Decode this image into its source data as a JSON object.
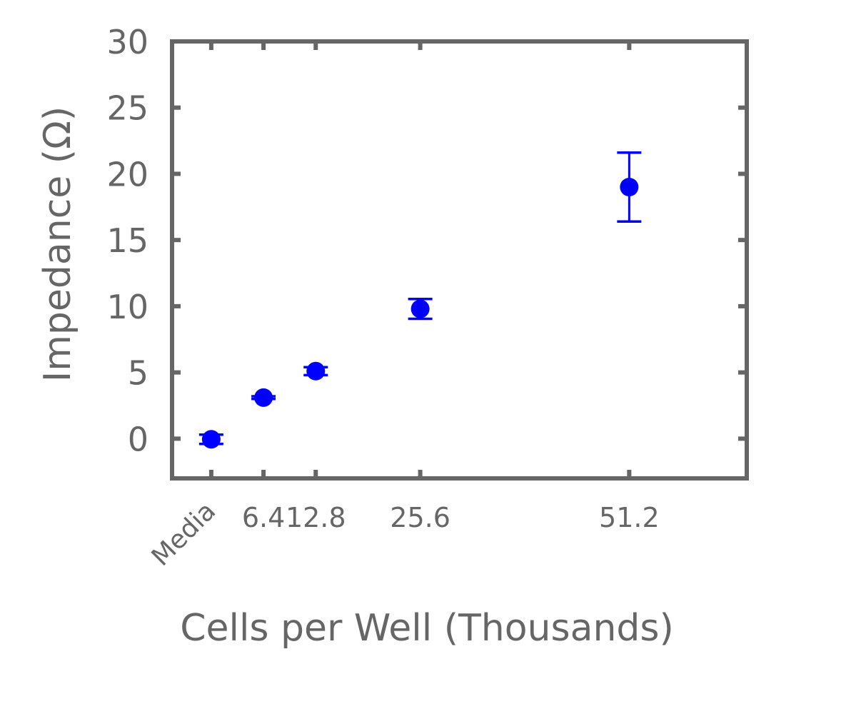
{
  "chart_data": {
    "type": "scatter",
    "title": "",
    "xlabel": "Cells per Well (Thousands)",
    "ylabel": "Impedance (Ω)",
    "xlim": [
      -4.8,
      65.6
    ],
    "ylim": [
      -3,
      30
    ],
    "yticks": [
      0,
      5,
      10,
      15,
      20,
      25,
      30
    ],
    "xticks": [
      {
        "value": 0,
        "label": "Media"
      },
      {
        "value": 6.4,
        "label": "6.4"
      },
      {
        "value": 12.8,
        "label": "12.8"
      },
      {
        "value": 25.6,
        "label": "25.6"
      },
      {
        "value": 51.2,
        "label": "51.2"
      }
    ],
    "series": [
      {
        "color": "#0000ff",
        "points": [
          {
            "x": 0,
            "y": -0.05,
            "err": 0.35
          },
          {
            "x": 6.4,
            "y": 3.1,
            "err": 0.1
          },
          {
            "x": 12.8,
            "y": 5.1,
            "err": 0.3
          },
          {
            "x": 25.6,
            "y": 9.8,
            "err": 0.75
          },
          {
            "x": 51.2,
            "y": 19.0,
            "err": 2.6
          }
        ]
      }
    ],
    "grid": false,
    "legend": "none",
    "axis_color": "#666666"
  }
}
